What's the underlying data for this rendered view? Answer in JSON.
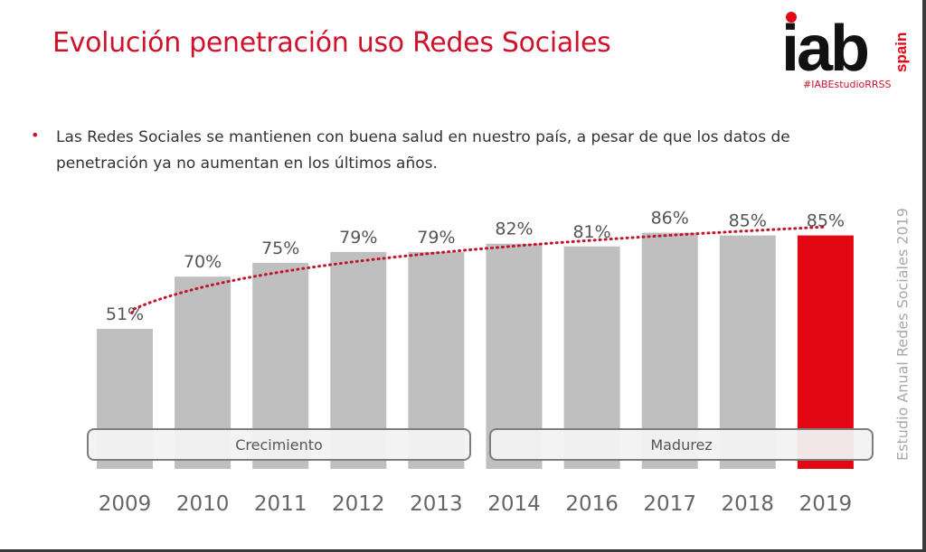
{
  "header": {
    "title": "Evolución penetración uso Redes Sociales",
    "logo_text": "iab.spain",
    "hashtag": "#IABEstudioRRSS"
  },
  "body": {
    "bullet": "Las Redes Sociales se mantienen con buena salud en nuestro país, a pesar de que los datos de penetración ya no aumentan en los últimos años."
  },
  "side_label": "Estudio Anual Redes Sociales 2019",
  "phases": {
    "growth": "Crecimiento",
    "maturity": "Madurez"
  },
  "colors": {
    "bar": "#bfbfbf",
    "highlight": "#e30613",
    "trend": "#c0142c",
    "title": "#d0112b"
  },
  "chart_data": {
    "type": "bar",
    "categories": [
      "2009",
      "2010",
      "2011",
      "2012",
      "2013",
      "2014",
      "2016",
      "2017",
      "2018",
      "2019"
    ],
    "values": [
      51,
      70,
      75,
      79,
      79,
      82,
      81,
      86,
      85,
      85
    ],
    "data_labels": [
      "51%",
      "70%",
      "75%",
      "79%",
      "79%",
      "82%",
      "81%",
      "86%",
      "85%",
      "85%"
    ],
    "highlight_category": "2019",
    "trendline": "logarithmic, dotted",
    "ylim": [
      0,
      100
    ],
    "grid": false,
    "legend": "none"
  }
}
